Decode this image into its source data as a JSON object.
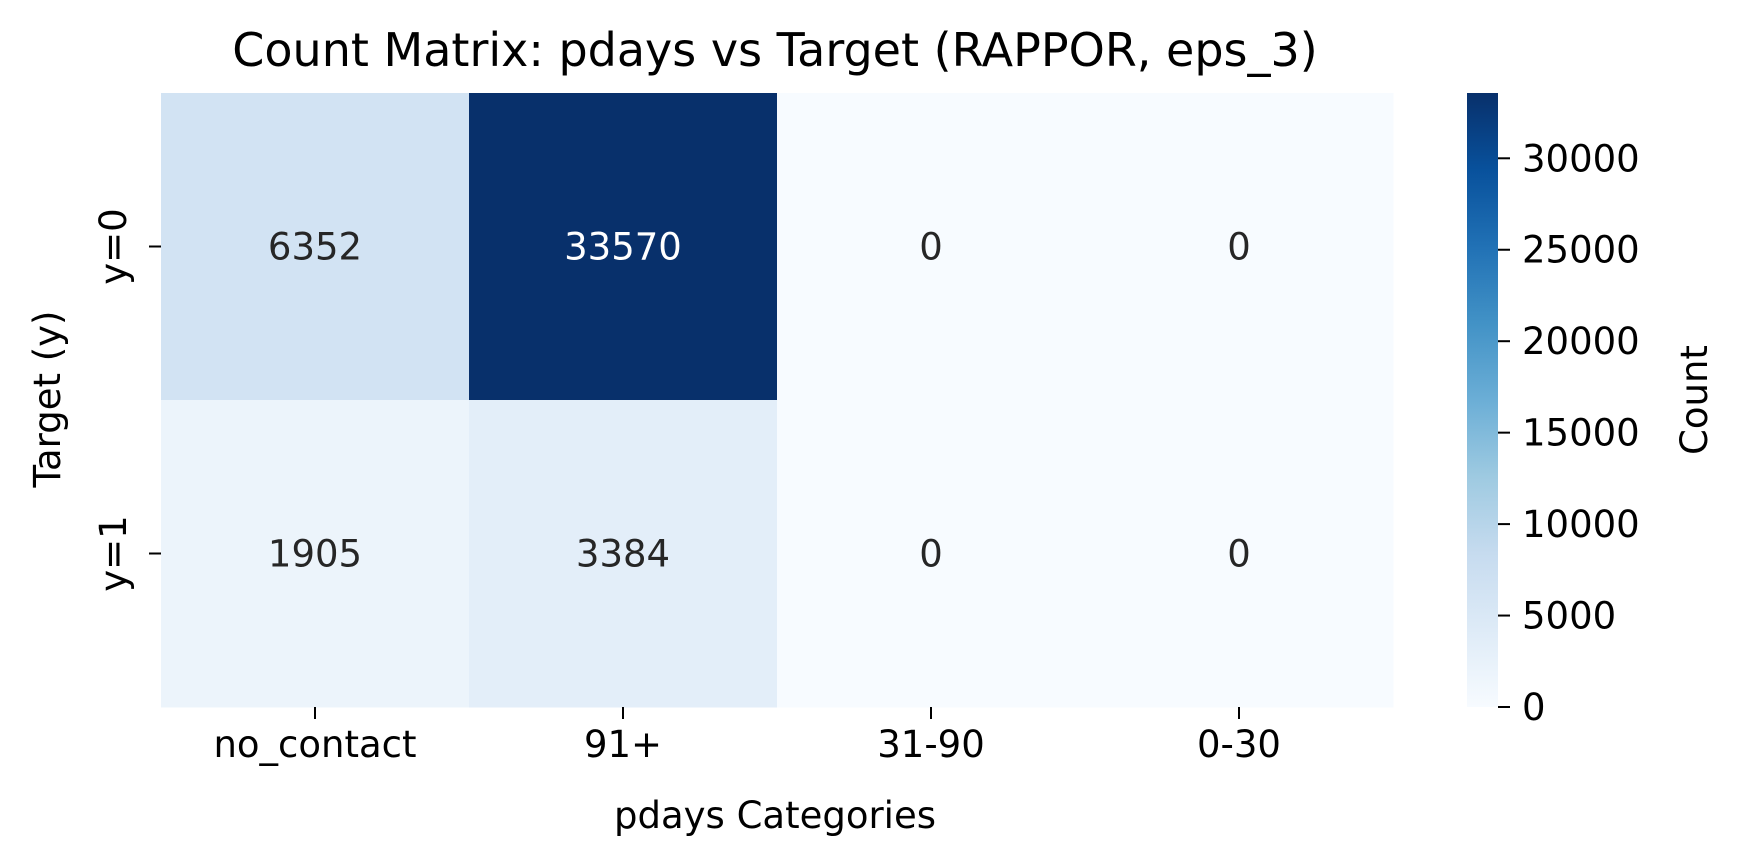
{
  "chart_data": {
    "type": "heatmap",
    "title": "Count Matrix: pdays vs Target (RAPPOR, eps_3)",
    "xlabel": "pdays Categories",
    "ylabel": "Target (y)",
    "x_categories": [
      "no_contact",
      "91+",
      "31-90",
      "0-30"
    ],
    "y_categories": [
      "y=0",
      "y=1"
    ],
    "values": [
      [
        6352,
        33570,
        0,
        0
      ],
      [
        1905,
        3384,
        0,
        0
      ]
    ],
    "colorbar": {
      "label": "Count",
      "range": [
        0,
        33570
      ],
      "ticks": [
        0,
        5000,
        10000,
        15000,
        20000,
        25000,
        30000
      ],
      "tick_labels": [
        "0",
        "5000",
        "10000",
        "15000",
        "20000",
        "25000",
        "30000"
      ]
    },
    "colormap": "Blues",
    "colors": {
      "low": "#f7fbff",
      "high": "#08306b",
      "text_dark": "#262626",
      "text_light": "#ffffff"
    }
  }
}
